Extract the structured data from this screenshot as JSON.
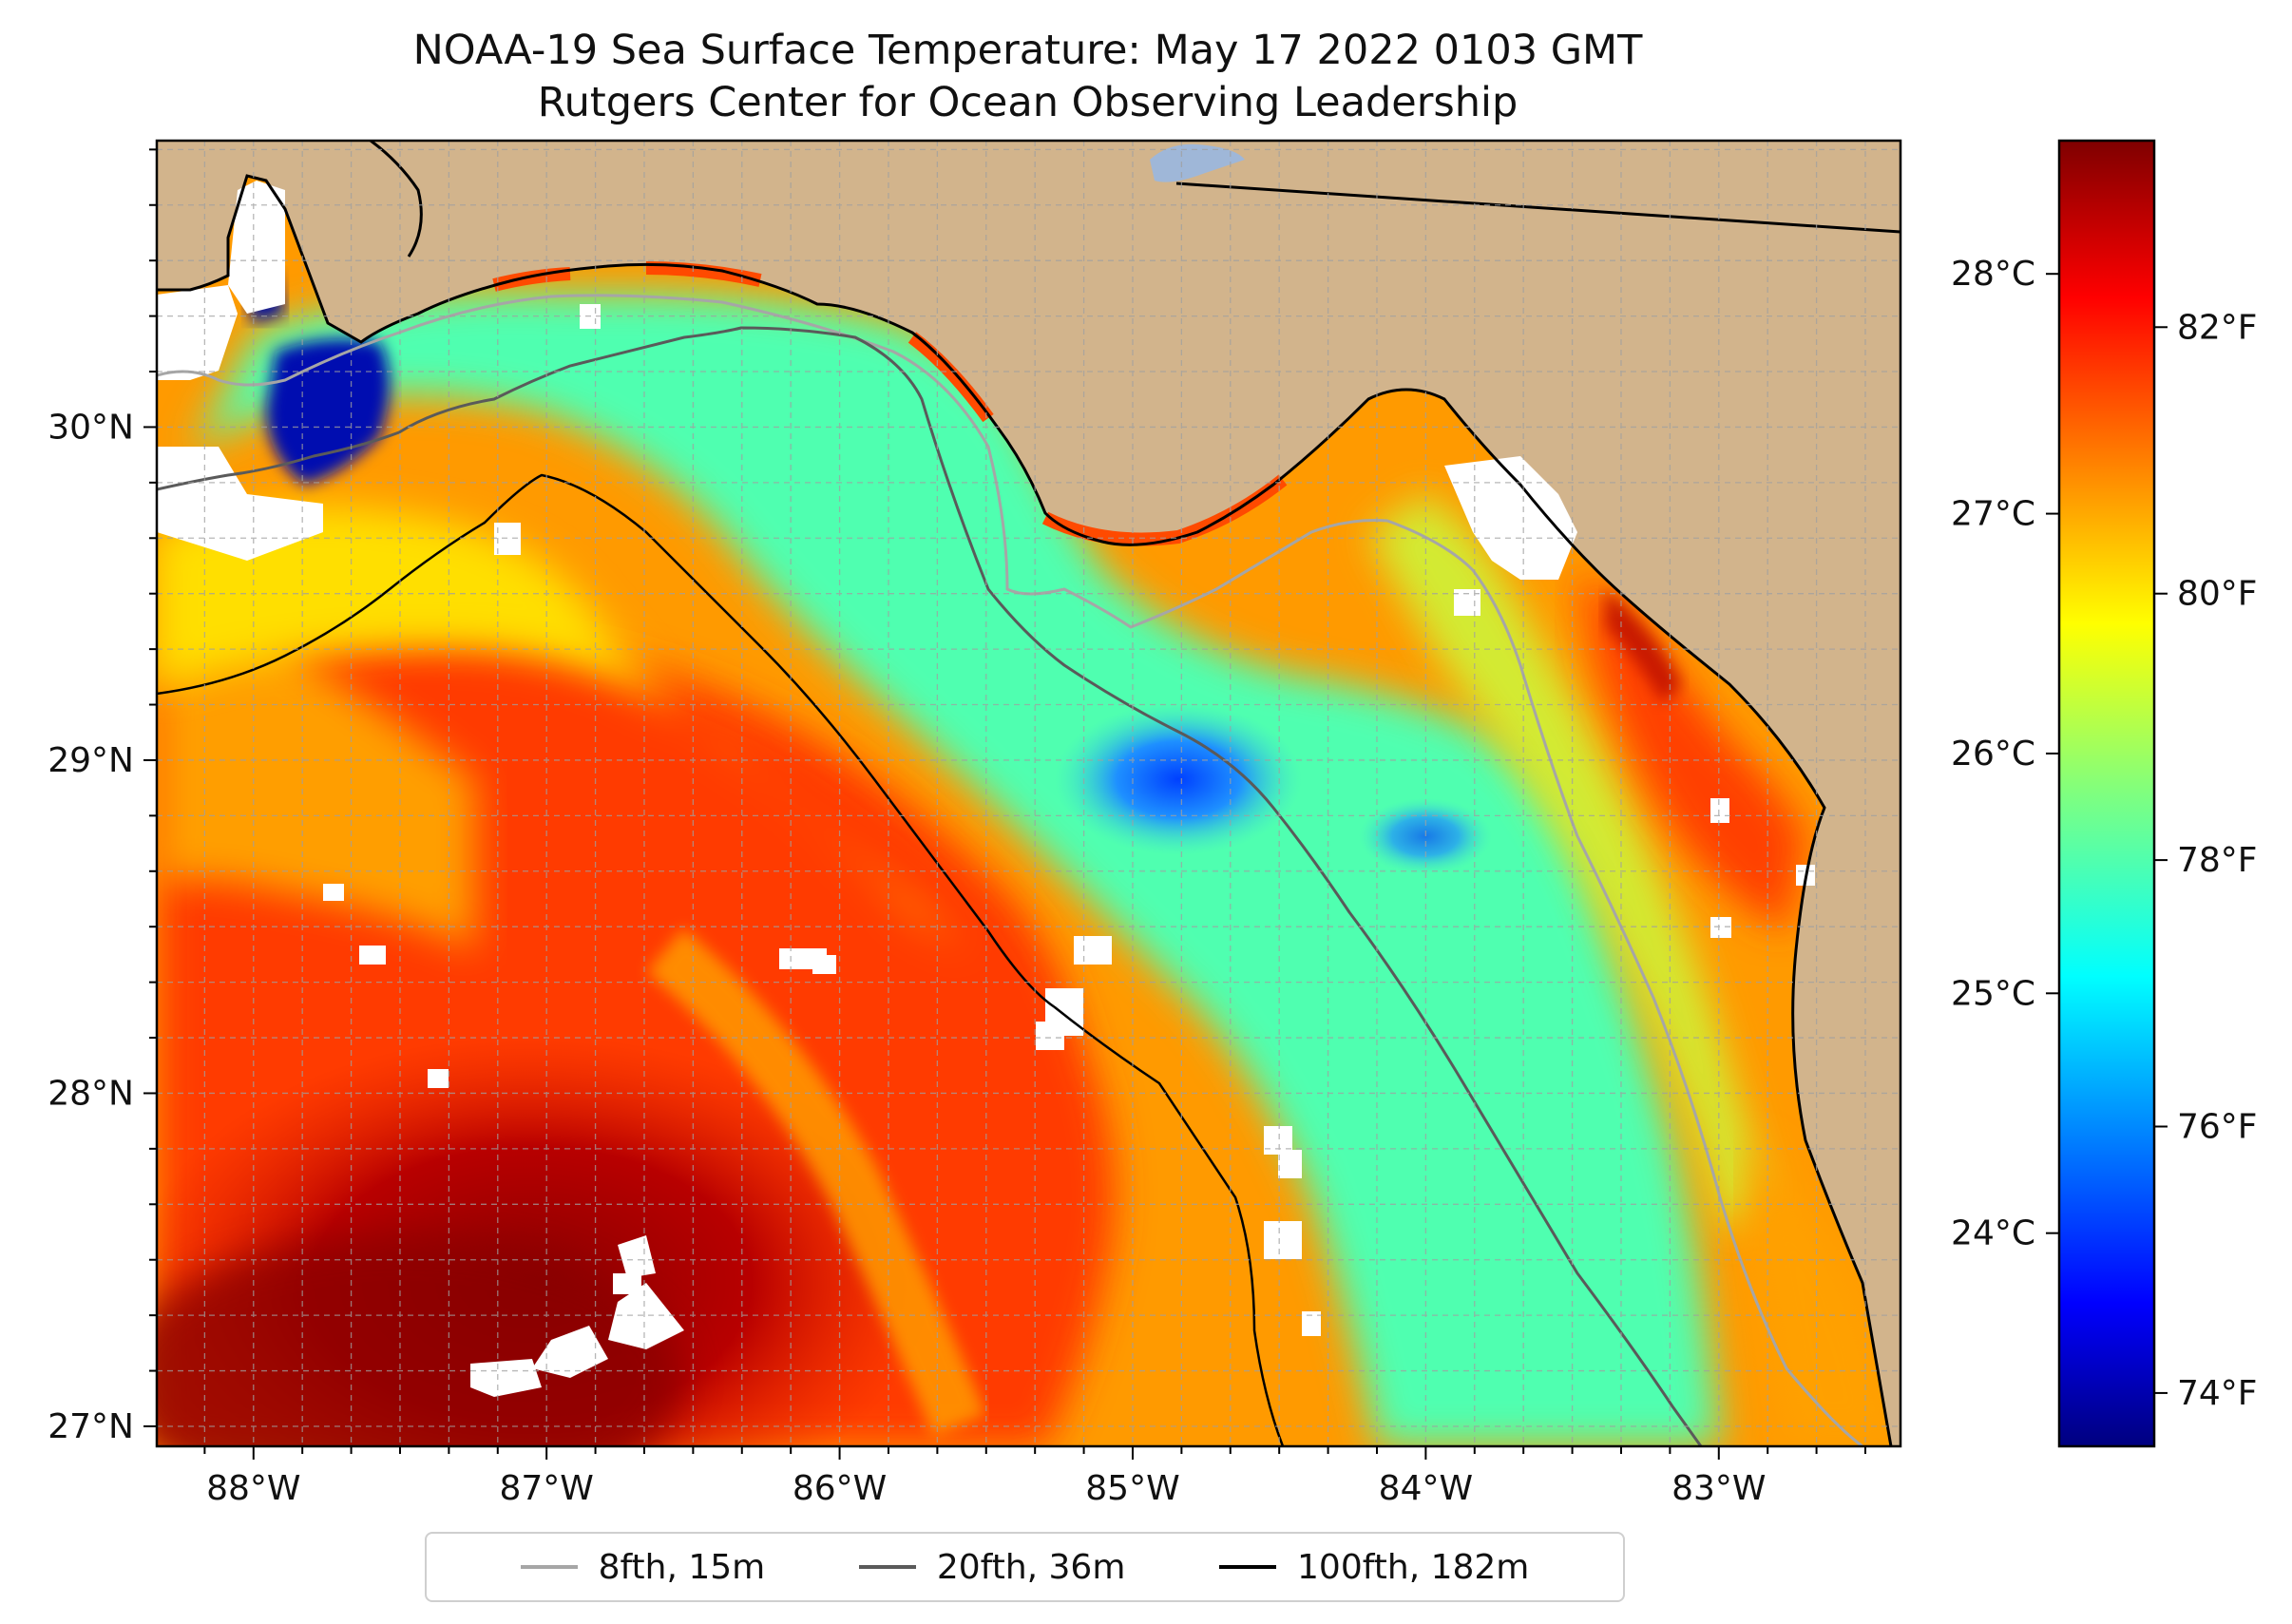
{
  "title": {
    "line1": "NOAA-19 Sea Surface Temperature: May 17 2022 0103 GMT",
    "line2": "Rutgers Center for Ocean Observing Leadership"
  },
  "map": {
    "lon_range": [
      -88.33,
      -82.38
    ],
    "lat_range": [
      26.94,
      30.86
    ],
    "lon_ticks": [
      -88,
      -87,
      -86,
      -85,
      -84,
      -83
    ],
    "lon_tick_labels": [
      "88°W",
      "87°W",
      "86°W",
      "85°W",
      "84°W",
      "83°W"
    ],
    "lat_ticks": [
      27,
      28,
      29,
      30
    ],
    "lat_tick_labels": [
      "27°N",
      "28°N",
      "29°N",
      "30°N"
    ],
    "grid": "dashed gray, every 0.1667°",
    "land_color": "#d2b48c",
    "no_data_color": "#ffffff",
    "colormap": "jet"
  },
  "colorbar": {
    "celsius_ticks": [
      24,
      25,
      26,
      27,
      28
    ],
    "celsius_labels": [
      "24°C",
      "25°C",
      "26°C",
      "27°C",
      "28°C"
    ],
    "fahrenheit_ticks": [
      74,
      76,
      78,
      80,
      82
    ],
    "fahrenheit_labels": [
      "74°F",
      "76°F",
      "78°F",
      "80°F",
      "82°F"
    ],
    "range_f": [
      73.6,
      83.4
    ]
  },
  "legend": {
    "placement": "bottom-center, below map",
    "items": [
      {
        "label": "8fth, 15m",
        "color": "#a6a6a6"
      },
      {
        "label": "20fth, 36m",
        "color": "#5a5a5a"
      },
      {
        "label": "100fth, 182m",
        "color": "#000000"
      }
    ]
  }
}
